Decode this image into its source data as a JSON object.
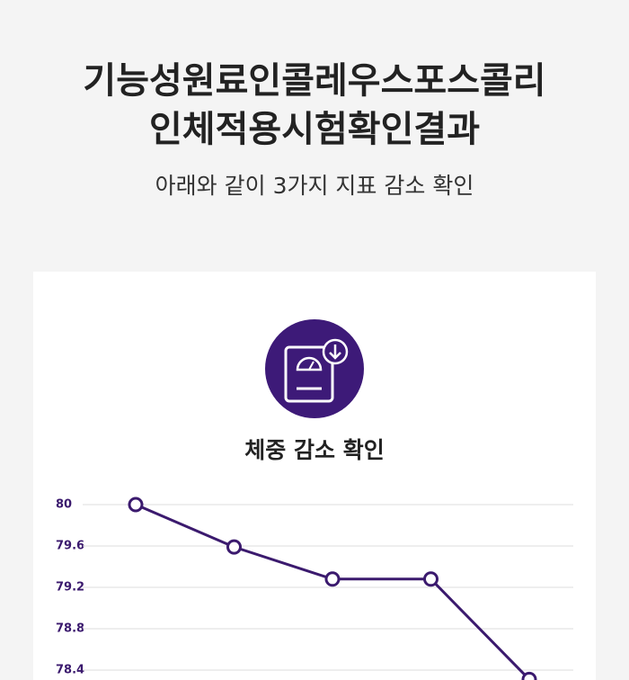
{
  "header": {
    "title_lines": [
      "기능성원료인콜레우스포스콜리",
      "인체적용시험확인결과"
    ],
    "subtitle": "아래와 같이 3가지 지표 감소 확인"
  },
  "chart_data": {
    "type": "line",
    "title": "체중 감소 확인",
    "categories": [
      null,
      null,
      null,
      null,
      null
    ],
    "series": [
      {
        "color": "#3b1a6e",
        "values": [
          80.0,
          79.59,
          79.28,
          79.28,
          78.31
        ]
      }
    ],
    "ylim": [
      78.3,
      80.2
    ],
    "yticks": [
      80,
      79.6,
      79.2,
      78.8,
      78.4
    ],
    "grid": true
  }
}
